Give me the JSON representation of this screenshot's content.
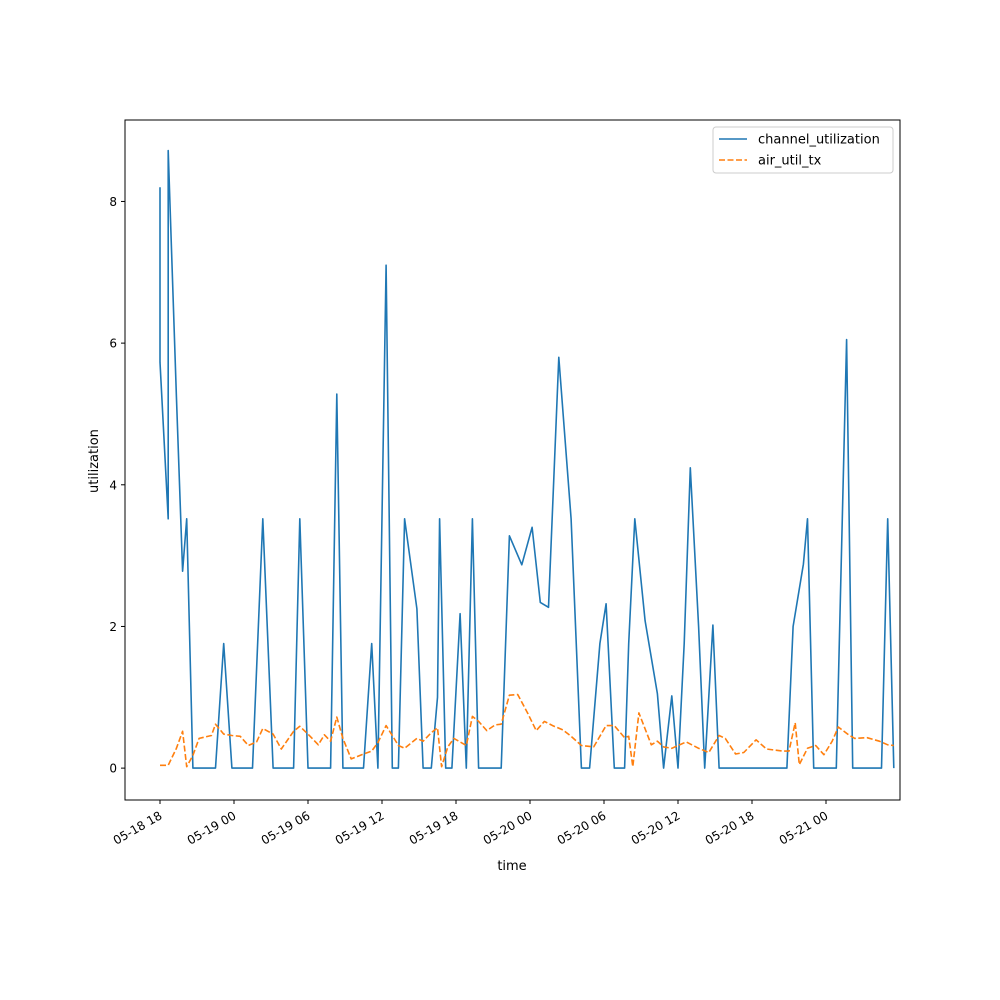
{
  "chart_data": {
    "type": "line",
    "xlabel": "time",
    "ylabel": "utilization",
    "x_tick_labels": [
      "05-18 18",
      "05-19 00",
      "05-19 06",
      "05-19 12",
      "05-19 18",
      "05-20 00",
      "05-20 06",
      "05-20 12",
      "05-20 18",
      "05-21 00"
    ],
    "y_tick_labels": [
      "0",
      "2",
      "4",
      "6",
      "8"
    ],
    "ylim": [
      -0.45,
      9.15
    ],
    "grid": false,
    "legend_position": "top-right",
    "series": [
      {
        "name": "channel_utilization",
        "color": "#1f77b4",
        "style": "solid",
        "points": [
          [
            "2024-05-18 18:00",
            8.2
          ],
          [
            "2024-05-18 18:00",
            5.73
          ],
          [
            "2024-05-18 18:40",
            3.52
          ],
          [
            "2024-05-18 18:40",
            8.72
          ],
          [
            "2024-05-18 19:20",
            5.25
          ],
          [
            "2024-05-18 19:50",
            2.78
          ],
          [
            "2024-05-18 20:10",
            3.52
          ],
          [
            "2024-05-18 20:40",
            0
          ],
          [
            "2024-05-18 22:30",
            0
          ],
          [
            "2024-05-18 23:10",
            1.76
          ],
          [
            "2024-05-18 23:50",
            0
          ],
          [
            "2024-05-19 01:30",
            0
          ],
          [
            "2024-05-19 02:20",
            3.52
          ],
          [
            "2024-05-19 03:10",
            0
          ],
          [
            "2024-05-19 04:50",
            0
          ],
          [
            "2024-05-19 05:20",
            3.52
          ],
          [
            "2024-05-19 06:00",
            0
          ],
          [
            "2024-05-19 07:50",
            0
          ],
          [
            "2024-05-19 08:20",
            5.28
          ],
          [
            "2024-05-19 08:50",
            0
          ],
          [
            "2024-05-19 10:30",
            0
          ],
          [
            "2024-05-19 11:10",
            1.76
          ],
          [
            "2024-05-19 11:40",
            0
          ],
          [
            "2024-05-19 12:20",
            7.1
          ],
          [
            "2024-05-19 12:50",
            0
          ],
          [
            "2024-05-19 13:20",
            0
          ],
          [
            "2024-05-19 13:50",
            3.52
          ],
          [
            "2024-05-19 14:50",
            2.25
          ],
          [
            "2024-05-19 15:20",
            0
          ],
          [
            "2024-05-19 16:00",
            0
          ],
          [
            "2024-05-19 16:30",
            1.0
          ],
          [
            "2024-05-19 16:40",
            3.52
          ],
          [
            "2024-05-19 17:10",
            0
          ],
          [
            "2024-05-19 17:40",
            0
          ],
          [
            "2024-05-19 18:20",
            2.18
          ],
          [
            "2024-05-19 18:50",
            0
          ],
          [
            "2024-05-19 19:20",
            3.52
          ],
          [
            "2024-05-19 19:50",
            0
          ],
          [
            "2024-05-19 21:40",
            0
          ],
          [
            "2024-05-19 22:20",
            3.28
          ],
          [
            "2024-05-19 23:20",
            2.87
          ],
          [
            "2024-05-20 00:10",
            3.4
          ],
          [
            "2024-05-20 00:50",
            2.34
          ],
          [
            "2024-05-20 01:30",
            2.27
          ],
          [
            "2024-05-20 02:20",
            5.8
          ],
          [
            "2024-05-20 03:20",
            3.52
          ],
          [
            "2024-05-20 04:10",
            0
          ],
          [
            "2024-05-20 04:50",
            0
          ],
          [
            "2024-05-20 05:40",
            1.76
          ],
          [
            "2024-05-20 06:10",
            2.32
          ],
          [
            "2024-05-20 06:50",
            0
          ],
          [
            "2024-05-20 07:40",
            0
          ],
          [
            "2024-05-20 08:00",
            1.76
          ],
          [
            "2024-05-20 08:30",
            3.52
          ],
          [
            "2024-05-20 09:20",
            2.08
          ],
          [
            "2024-05-20 10:20",
            1.05
          ],
          [
            "2024-05-20 10:50",
            0
          ],
          [
            "2024-05-20 11:30",
            1.02
          ],
          [
            "2024-05-20 12:00",
            0
          ],
          [
            "2024-05-20 12:30",
            1.76
          ],
          [
            "2024-05-20 13:00",
            4.24
          ],
          [
            "2024-05-20 13:40",
            2.0
          ],
          [
            "2024-05-20 14:10",
            0
          ],
          [
            "2024-05-20 14:50",
            2.02
          ],
          [
            "2024-05-20 15:20",
            0
          ],
          [
            "2024-05-20 20:50",
            0
          ],
          [
            "2024-05-20 21:20",
            2.0
          ],
          [
            "2024-05-20 22:10",
            2.88
          ],
          [
            "2024-05-20 22:30",
            3.52
          ],
          [
            "2024-05-20 23:00",
            0
          ],
          [
            "2024-05-21 00:50",
            0
          ],
          [
            "2024-05-21 01:40",
            6.05
          ],
          [
            "2024-05-21 02:10",
            0
          ],
          [
            "2024-05-21 04:30",
            0
          ],
          [
            "2024-05-21 05:00",
            3.52
          ],
          [
            "2024-05-21 05:30",
            0
          ]
        ]
      },
      {
        "name": "air_util_tx",
        "color": "#ff7f0e",
        "style": "dashed",
        "points": [
          [
            "2024-05-18 18:00",
            0.04
          ],
          [
            "2024-05-18 18:40",
            0.04
          ],
          [
            "2024-05-18 19:20",
            0.28
          ],
          [
            "2024-05-18 19:50",
            0.52
          ],
          [
            "2024-05-18 20:10",
            0.02
          ],
          [
            "2024-05-18 20:40",
            0.18
          ],
          [
            "2024-05-18 21:10",
            0.42
          ],
          [
            "2024-05-18 22:10",
            0.46
          ],
          [
            "2024-05-18 22:30",
            0.62
          ],
          [
            "2024-05-18 23:10",
            0.48
          ],
          [
            "2024-05-18 23:50",
            0.46
          ],
          [
            "2024-05-19 00:30",
            0.45
          ],
          [
            "2024-05-19 01:10",
            0.32
          ],
          [
            "2024-05-19 01:50",
            0.37
          ],
          [
            "2024-05-19 02:20",
            0.56
          ],
          [
            "2024-05-19 03:10",
            0.48
          ],
          [
            "2024-05-19 03:50",
            0.27
          ],
          [
            "2024-05-19 04:50",
            0.52
          ],
          [
            "2024-05-19 05:20",
            0.59
          ],
          [
            "2024-05-19 06:00",
            0.48
          ],
          [
            "2024-05-19 06:50",
            0.33
          ],
          [
            "2024-05-19 07:20",
            0.47
          ],
          [
            "2024-05-19 07:50",
            0.38
          ],
          [
            "2024-05-19 08:20",
            0.72
          ],
          [
            "2024-05-19 08:50",
            0.42
          ],
          [
            "2024-05-19 09:30",
            0.13
          ],
          [
            "2024-05-19 10:30",
            0.2
          ],
          [
            "2024-05-19 11:10",
            0.24
          ],
          [
            "2024-05-19 11:40",
            0.36
          ],
          [
            "2024-05-19 12:20",
            0.6
          ],
          [
            "2024-05-19 12:50",
            0.46
          ],
          [
            "2024-05-19 13:20",
            0.32
          ],
          [
            "2024-05-19 13:50",
            0.28
          ],
          [
            "2024-05-19 14:50",
            0.42
          ],
          [
            "2024-05-19 15:20",
            0.38
          ],
          [
            "2024-05-19 16:00",
            0.5
          ],
          [
            "2024-05-19 16:30",
            0.57
          ],
          [
            "2024-05-19 16:50",
            0.02
          ],
          [
            "2024-05-19 17:20",
            0.3
          ],
          [
            "2024-05-19 17:50",
            0.42
          ],
          [
            "2024-05-19 18:50",
            0.32
          ],
          [
            "2024-05-19 19:20",
            0.73
          ],
          [
            "2024-05-19 19:50",
            0.66
          ],
          [
            "2024-05-19 20:30",
            0.53
          ],
          [
            "2024-05-19 21:10",
            0.61
          ],
          [
            "2024-05-19 21:40",
            0.62
          ],
          [
            "2024-05-19 22:20",
            1.03
          ],
          [
            "2024-05-19 23:00",
            1.04
          ],
          [
            "2024-05-19 23:50",
            0.77
          ],
          [
            "2024-05-20 00:30",
            0.53
          ],
          [
            "2024-05-20 01:10",
            0.66
          ],
          [
            "2024-05-20 01:50",
            0.6
          ],
          [
            "2024-05-20 02:40",
            0.54
          ],
          [
            "2024-05-20 03:20",
            0.45
          ],
          [
            "2024-05-20 04:10",
            0.32
          ],
          [
            "2024-05-20 05:10",
            0.3
          ],
          [
            "2024-05-20 06:10",
            0.6
          ],
          [
            "2024-05-20 06:50",
            0.6
          ],
          [
            "2024-05-20 07:40",
            0.43
          ],
          [
            "2024-05-20 08:00",
            0.45
          ],
          [
            "2024-05-20 08:20",
            0.02
          ],
          [
            "2024-05-20 08:50",
            0.78
          ],
          [
            "2024-05-20 09:50",
            0.33
          ],
          [
            "2024-05-20 10:20",
            0.38
          ],
          [
            "2024-05-20 10:50",
            0.3
          ],
          [
            "2024-05-20 11:30",
            0.28
          ],
          [
            "2024-05-20 12:40",
            0.37
          ],
          [
            "2024-05-20 13:40",
            0.28
          ],
          [
            "2024-05-20 14:30",
            0.22
          ],
          [
            "2024-05-20 15:20",
            0.46
          ],
          [
            "2024-05-20 15:50",
            0.42
          ],
          [
            "2024-05-20 16:40",
            0.2
          ],
          [
            "2024-05-20 17:20",
            0.22
          ],
          [
            "2024-05-20 18:20",
            0.4
          ],
          [
            "2024-05-20 19:10",
            0.27
          ],
          [
            "2024-05-20 20:30",
            0.24
          ],
          [
            "2024-05-20 21:00",
            0.24
          ],
          [
            "2024-05-20 21:30",
            0.64
          ],
          [
            "2024-05-20 21:50",
            0.05
          ],
          [
            "2024-05-20 22:30",
            0.28
          ],
          [
            "2024-05-20 23:10",
            0.32
          ],
          [
            "2024-05-20 23:50",
            0.19
          ],
          [
            "2024-05-21 00:30",
            0.38
          ],
          [
            "2024-05-21 01:00",
            0.58
          ],
          [
            "2024-05-21 01:50",
            0.47
          ],
          [
            "2024-05-21 02:20",
            0.42
          ],
          [
            "2024-05-21 03:20",
            0.43
          ],
          [
            "2024-05-21 04:20",
            0.38
          ],
          [
            "2024-05-21 05:00",
            0.33
          ],
          [
            "2024-05-21 05:30",
            0.32
          ]
        ]
      }
    ]
  }
}
